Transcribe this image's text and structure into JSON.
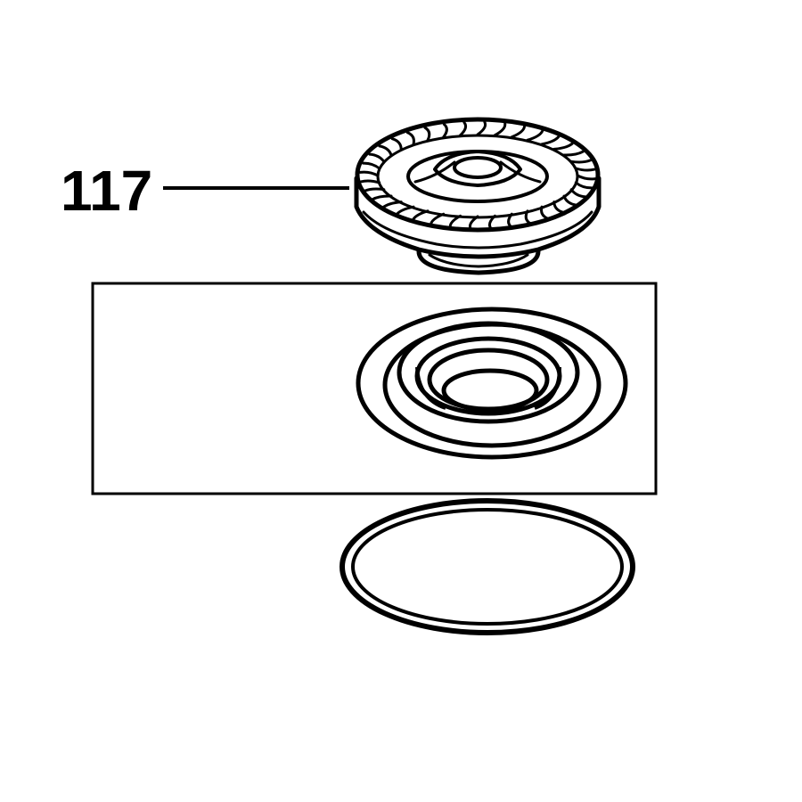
{
  "diagram": {
    "callouts": [
      {
        "id": "117",
        "label": "117",
        "part": "bevel-gear"
      }
    ],
    "parts": [
      {
        "name": "bevel-gear",
        "labeled": true
      },
      {
        "name": "bearing-seal",
        "labeled": false,
        "boxed": true
      },
      {
        "name": "o-ring",
        "labeled": false
      }
    ],
    "colors": {
      "ink": "#000000",
      "paper": "#ffffff"
    }
  }
}
